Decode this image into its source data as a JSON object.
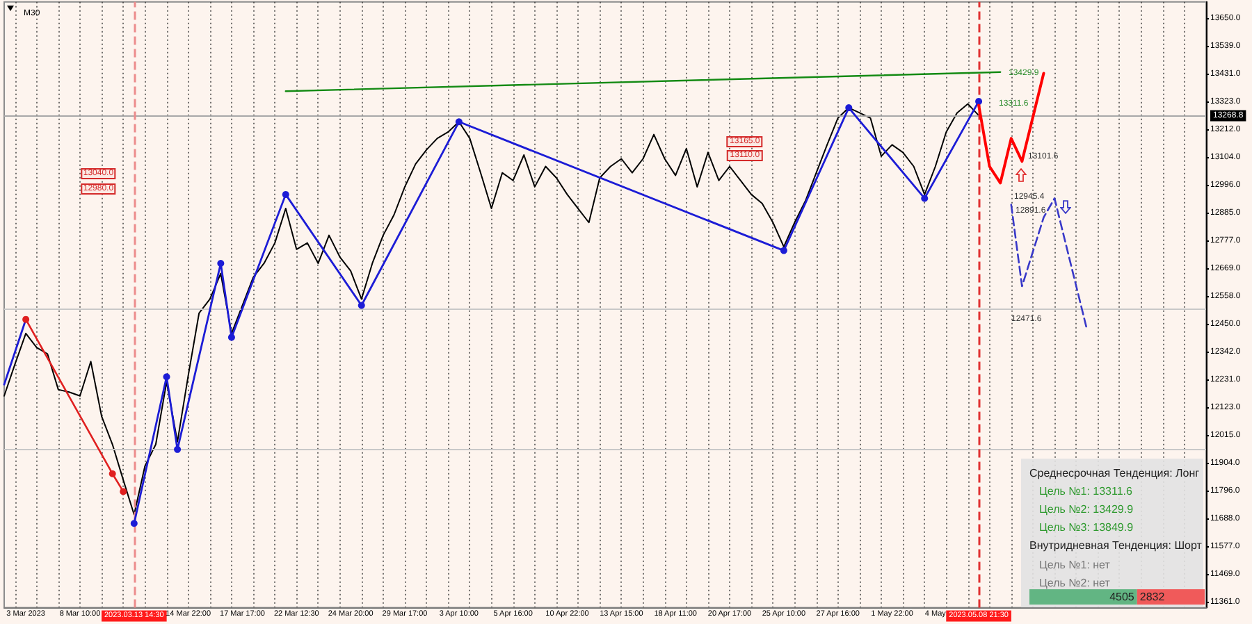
{
  "chart_data": [
    {
      "type": "line",
      "title": "M30",
      "categories": [
        null,
        null,
        "3 Mar 2023",
        null,
        null,
        null,
        null,
        "8 Mar 10:00",
        null,
        null,
        null,
        null,
        "2023.03.13 14:30",
        null,
        null,
        null,
        null,
        "14 Mar 22:00",
        null,
        null,
        null,
        null,
        "17 Mar 17:00",
        null,
        null,
        null,
        null,
        "22 Mar 12:30",
        null,
        null,
        null,
        null,
        "24 Mar 20:00",
        null,
        null,
        null,
        null,
        "29 Mar 17:00",
        null,
        null,
        null,
        null,
        "3 Apr 10:00",
        null,
        null,
        null,
        null,
        "5 Apr 16:00",
        null,
        null,
        null,
        null,
        "10 Apr 22:00",
        null,
        null,
        null,
        null,
        "13 Apr 15:00",
        null,
        null,
        null,
        null,
        "18 Apr 11:00",
        null,
        null,
        null,
        null,
        "20 Apr 17:00",
        null,
        null,
        null,
        null,
        "25 Apr 10:00",
        null,
        null,
        null,
        null,
        "27 Apr 16:00",
        null,
        null,
        null,
        null,
        "1 May 22:00",
        null,
        null,
        null,
        "4 May",
        null,
        null,
        null,
        "2023.05.08 21:30",
        null,
        null,
        null,
        null,
        null,
        null,
        null,
        null,
        null,
        null,
        null,
        null,
        null,
        null,
        null,
        null,
        null,
        null,
        null,
        null,
        null
      ],
      "series": [
        {
          "color": "#000000",
          "values": [
            12170,
            12295,
            12415,
            12360,
            12335,
            12195,
            12185,
            12170,
            12305,
            12090,
            11980,
            11840,
            11705,
            11895,
            11980,
            12225,
            11990,
            12250,
            12495,
            12550,
            12650,
            12415,
            12525,
            12635,
            12690,
            12770,
            12905,
            12745,
            12770,
            12690,
            12800,
            12715,
            12660,
            12550,
            12690,
            12800,
            12880,
            12990,
            13080,
            13135,
            13180,
            13205,
            13245,
            13180,
            13045,
            12905,
            13045,
            13015,
            13115,
            12990,
            13070,
            13025,
            12960,
            12905,
            12850,
            13025,
            13070,
            13100,
            13045,
            13100,
            13195,
            13100,
            13035,
            13140,
            12990,
            13125,
            13015,
            13070,
            13015,
            12960,
            12925,
            12850,
            12755,
            12850,
            12935,
            13045,
            13155,
            13260,
            13300,
            13280,
            13260,
            13110,
            13155,
            13125,
            13070,
            12960,
            13070,
            13205,
            13280,
            13315,
            13270,
            null,
            null,
            null,
            null,
            null,
            null,
            null,
            null,
            null,
            null,
            null,
            null,
            null,
            null,
            null,
            null,
            null,
            null,
            null,
            null,
            null
          ]
        },
        {
          "color": "#1c1cd6",
          "values": [
            12215,
            null,
            12470,
            null,
            null,
            null,
            null,
            null,
            null,
            null,
            null,
            null,
            null,
            null,
            null,
            null,
            null,
            null,
            null,
            null,
            null,
            null,
            null,
            null,
            null,
            null,
            null,
            null,
            null,
            null,
            null,
            null,
            null,
            null,
            null,
            null,
            null,
            null,
            null,
            null,
            null,
            null,
            null,
            null,
            null,
            null,
            null,
            null,
            null,
            null,
            null,
            null,
            null,
            null,
            null,
            null,
            null,
            null,
            null,
            null,
            null,
            null,
            null,
            null,
            null,
            null,
            null,
            null,
            null,
            null,
            null,
            null,
            null,
            null,
            null,
            null,
            null,
            null,
            null,
            null,
            null,
            null,
            null,
            null,
            null,
            null,
            null,
            null,
            null,
            null,
            null,
            null,
            null,
            null,
            null,
            null,
            null,
            null,
            null,
            null,
            null,
            null,
            null,
            null,
            null,
            null,
            null,
            null,
            null,
            null,
            null,
            null
          ]
        },
        {
          "color": "#e02020",
          "marker": "circle",
          "values": [
            null,
            null,
            12470,
            null,
            null,
            null,
            null,
            null,
            null,
            null,
            11865,
            11795,
            null,
            null,
            null,
            null,
            null,
            null,
            null,
            null,
            null,
            null,
            null,
            null,
            null,
            null,
            null,
            null,
            null,
            null,
            null,
            null,
            null,
            null,
            null,
            null,
            null,
            null,
            null,
            null,
            null,
            null,
            null,
            null,
            null,
            null,
            null,
            null,
            null,
            null,
            null,
            null,
            null,
            null,
            null,
            null,
            null,
            null,
            null,
            null,
            null,
            null,
            null,
            null,
            null,
            null,
            null,
            null,
            null,
            null,
            null,
            null,
            null,
            null,
            null,
            null,
            null,
            null,
            null,
            null,
            null,
            null,
            null,
            null,
            null,
            null,
            null,
            null,
            null,
            null,
            null,
            null,
            null,
            null,
            null,
            null,
            null,
            null,
            null,
            null,
            null,
            null,
            null,
            null,
            null,
            null,
            null,
            null,
            null,
            null,
            null,
            null
          ]
        },
        {
          "color": "#1c1cd6",
          "marker": "circle",
          "values": [
            null,
            null,
            null,
            null,
            null,
            null,
            null,
            null,
            null,
            null,
            null,
            null,
            11670,
            null,
            null,
            12245,
            11960,
            null,
            null,
            null,
            12690,
            12400,
            null,
            null,
            null,
            null,
            12960,
            null,
            null,
            null,
            null,
            null,
            null,
            12525,
            null,
            null,
            null,
            null,
            null,
            null,
            null,
            null,
            13245,
            null,
            null,
            null,
            null,
            null,
            null,
            null,
            null,
            null,
            null,
            null,
            null,
            null,
            null,
            null,
            null,
            null,
            null,
            null,
            null,
            null,
            null,
            null,
            null,
            null,
            null,
            null,
            null,
            null,
            12740,
            null,
            null,
            null,
            null,
            null,
            13300,
            null,
            null,
            null,
            null,
            null,
            null,
            12945,
            null,
            null,
            null,
            null,
            13325,
            null,
            null,
            null,
            null,
            null,
            null,
            null,
            null,
            null,
            null,
            null,
            null,
            null,
            null,
            null,
            null,
            null,
            null,
            null,
            null,
            null
          ]
        },
        {
          "color": "#138a13",
          "values": [
            null,
            null,
            null,
            null,
            null,
            null,
            null,
            null,
            null,
            null,
            null,
            null,
            null,
            null,
            null,
            null,
            null,
            null,
            null,
            null,
            null,
            null,
            null,
            null,
            null,
            null,
            13365,
            null,
            null,
            null,
            null,
            null,
            null,
            null,
            null,
            null,
            null,
            null,
            null,
            null,
            null,
            null,
            null,
            null,
            null,
            null,
            null,
            null,
            null,
            null,
            null,
            null,
            null,
            null,
            null,
            null,
            null,
            null,
            null,
            null,
            null,
            null,
            null,
            null,
            null,
            null,
            null,
            null,
            null,
            null,
            null,
            null,
            null,
            null,
            null,
            null,
            null,
            null,
            null,
            null,
            null,
            null,
            null,
            null,
            null,
            null,
            null,
            null,
            null,
            null,
            null,
            null,
            13440,
            null,
            null,
            null,
            null,
            null,
            null,
            null,
            null,
            null,
            null,
            null,
            null,
            null,
            null,
            null,
            null,
            null,
            null,
            null
          ]
        },
        {
          "color": "#ff0000",
          "values": [
            null,
            null,
            null,
            null,
            null,
            null,
            null,
            null,
            null,
            null,
            null,
            null,
            null,
            null,
            null,
            null,
            null,
            null,
            null,
            null,
            null,
            null,
            null,
            null,
            null,
            null,
            null,
            null,
            null,
            null,
            null,
            null,
            null,
            null,
            null,
            null,
            null,
            null,
            null,
            null,
            null,
            null,
            null,
            null,
            null,
            null,
            null,
            null,
            null,
            null,
            null,
            null,
            null,
            null,
            null,
            null,
            null,
            null,
            null,
            null,
            null,
            null,
            null,
            null,
            null,
            null,
            null,
            null,
            null,
            null,
            null,
            null,
            null,
            null,
            null,
            null,
            null,
            null,
            null,
            null,
            null,
            null,
            null,
            null,
            null,
            null,
            null,
            null,
            null,
            null,
            13310,
            13070,
            13005,
            13180,
            13090,
            null,
            13435,
            null,
            null,
            null,
            null,
            null,
            null,
            null,
            null,
            null,
            null,
            null,
            null,
            null,
            null,
            null
          ]
        },
        {
          "color": "#3838c8",
          "line_style": "dashed",
          "values": [
            null,
            null,
            null,
            null,
            null,
            null,
            null,
            null,
            null,
            null,
            null,
            null,
            null,
            null,
            null,
            null,
            null,
            null,
            null,
            null,
            null,
            null,
            null,
            null,
            null,
            null,
            null,
            null,
            null,
            null,
            null,
            null,
            null,
            null,
            null,
            null,
            null,
            null,
            null,
            null,
            null,
            null,
            null,
            null,
            null,
            null,
            null,
            null,
            null,
            null,
            null,
            null,
            null,
            null,
            null,
            null,
            null,
            null,
            null,
            null,
            null,
            null,
            null,
            null,
            null,
            null,
            null,
            null,
            null,
            null,
            null,
            null,
            null,
            null,
            null,
            null,
            null,
            null,
            null,
            null,
            null,
            null,
            null,
            null,
            null,
            null,
            null,
            null,
            null,
            null,
            null,
            null,
            null,
            12920,
            12600,
            null,
            12870,
            12945,
            null,
            null,
            12430,
            null,
            null,
            null,
            null,
            null,
            null,
            null,
            null,
            null,
            null,
            null
          ]
        }
      ],
      "ylim": [
        11340,
        13715
      ],
      "yticks": [
        {
          "value": 13650,
          "label": "13650.0"
        },
        {
          "value": 13539,
          "label": "13539.0"
        },
        {
          "value": 13431,
          "label": "13431.0"
        },
        {
          "value": 13323,
          "label": "13323.0"
        },
        {
          "value": 13212,
          "label": "13212.0"
        },
        {
          "value": 13104,
          "label": "13104.0"
        },
        {
          "value": 12996,
          "label": "12996.0"
        },
        {
          "value": 12885,
          "label": "12885.0"
        },
        {
          "value": 12777,
          "label": "12777.0"
        },
        {
          "value": 12669,
          "label": "12669.0"
        },
        {
          "value": 12558,
          "label": "12558.0"
        },
        {
          "value": 12450,
          "label": "12450.0"
        },
        {
          "value": 12342,
          "label": "12342.0"
        },
        {
          "value": 12231,
          "label": "12231.0"
        },
        {
          "value": 12123,
          "label": "12123.0"
        },
        {
          "value": 12015,
          "label": "12015.0"
        },
        {
          "value": 11904,
          "label": "11904.0"
        },
        {
          "value": 11796,
          "label": "11796.0"
        },
        {
          "value": 11688,
          "label": "11688.0"
        },
        {
          "value": 11577,
          "label": "11577.0"
        },
        {
          "value": 11469,
          "label": "11469.0"
        },
        {
          "value": 11361,
          "label": "11361.0"
        }
      ],
      "grid": "x",
      "marker": "none",
      "line_style": "solid",
      "ref_lines": [
        {
          "axis": "y",
          "value": 13268.8,
          "label": "13268.8",
          "color": "#a8a8a8"
        },
        {
          "axis": "y",
          "value": 12510,
          "color": "#c8c8c8"
        },
        {
          "axis": "y",
          "value": 11960,
          "color": "#c8c8c8"
        },
        {
          "axis": "x",
          "value": "2023.03.13 14:30",
          "color": "#ec8c8c",
          "line_style": "dashed"
        },
        {
          "axis": "x",
          "value": "2023.05.08 21:30",
          "color": "#e03030",
          "line_style": "dashed"
        }
      ],
      "annotations": [
        {
          "text": "13040.0",
          "y": 13040
        },
        {
          "text": "12980.0",
          "y": 12980
        },
        {
          "text": "13165.0",
          "y": 13165
        },
        {
          "text": "13110.0",
          "y": 13110
        },
        "13429.9",
        "13311.6",
        "13101.6",
        "12945.4",
        "12891.6",
        "12471.6",
        "Среднесрочная Тенденция: Лонг",
        "Цель №1: 13311.6",
        "Цель №2: 13429.9",
        "Цель №3: 13849.9",
        "Внутридневная Тенденция: Шорт",
        "Цель №1: нет",
        "Цель №2: нет"
      ]
    },
    {
      "type": "bar",
      "orientation": "horizontal",
      "stacked": true,
      "categories": [
        null
      ],
      "series": [
        {
          "color": "#62b583",
          "values": [
            4505
          ]
        },
        {
          "color": "#f05a5a",
          "values": [
            2832
          ]
        }
      ],
      "data_labels": true,
      "tick_labels": false
    }
  ]
}
